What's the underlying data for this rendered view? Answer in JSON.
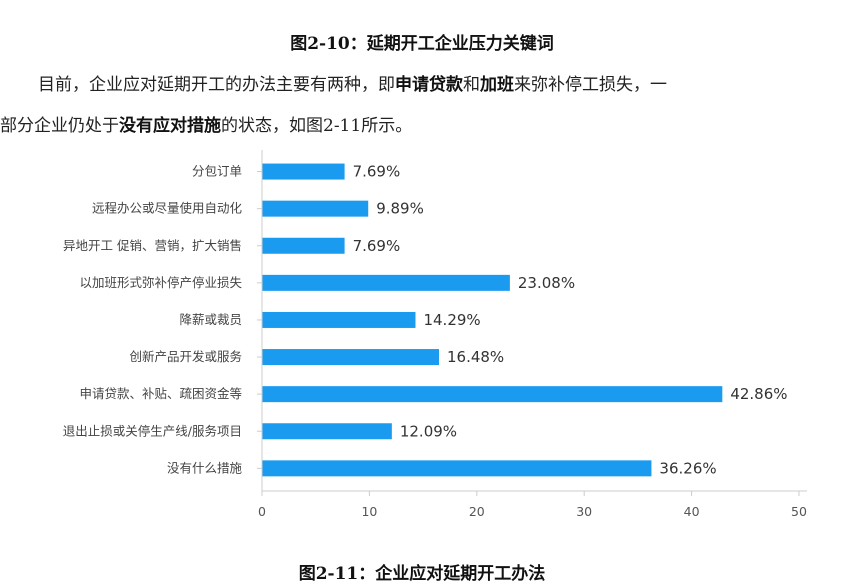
{
  "figure_top_title": "图2-10：延期开工企业压力关键词",
  "paragraph": {
    "l1_a": "目前，企业应对延期开工的办法主要有两种，即",
    "l1_b": "申请贷款",
    "l1_c": "和",
    "l1_d": "加班",
    "l1_e": "来弥补停工损失，一",
    "l2_a": "部分企业仍处于",
    "l2_b": "没有应对措施",
    "l2_c": "的状态，如图2-11所示。"
  },
  "figure_bottom_title": "图2-11：企业应对延期开工办法",
  "colors": {
    "bar": "#1a9bf0",
    "axis": "#cccccc"
  },
  "chart_data": {
    "type": "bar",
    "orientation": "horizontal",
    "categories": [
      "分包订单",
      "远程办公或尽量使用自动化",
      "异地开工 促销、营销，扩大销售",
      "以加班形式弥补停产停业损失",
      "降薪或裁员",
      "创新产品开发或服务",
      "申请贷款、补贴、疏困资金等",
      "退出止损或关停生产线/服务项目",
      "没有什么措施"
    ],
    "values": [
      7.69,
      9.89,
      7.69,
      23.08,
      14.29,
      16.48,
      42.86,
      12.09,
      36.26
    ],
    "value_labels": [
      "7.69%",
      "9.89%",
      "7.69%",
      "23.08%",
      "14.29%",
      "16.48%",
      "42.86%",
      "12.09%",
      "36.26%"
    ],
    "xlim": [
      0,
      50
    ],
    "xticks": [
      "0",
      "10",
      "20",
      "30",
      "40",
      "50"
    ],
    "grid": false
  }
}
